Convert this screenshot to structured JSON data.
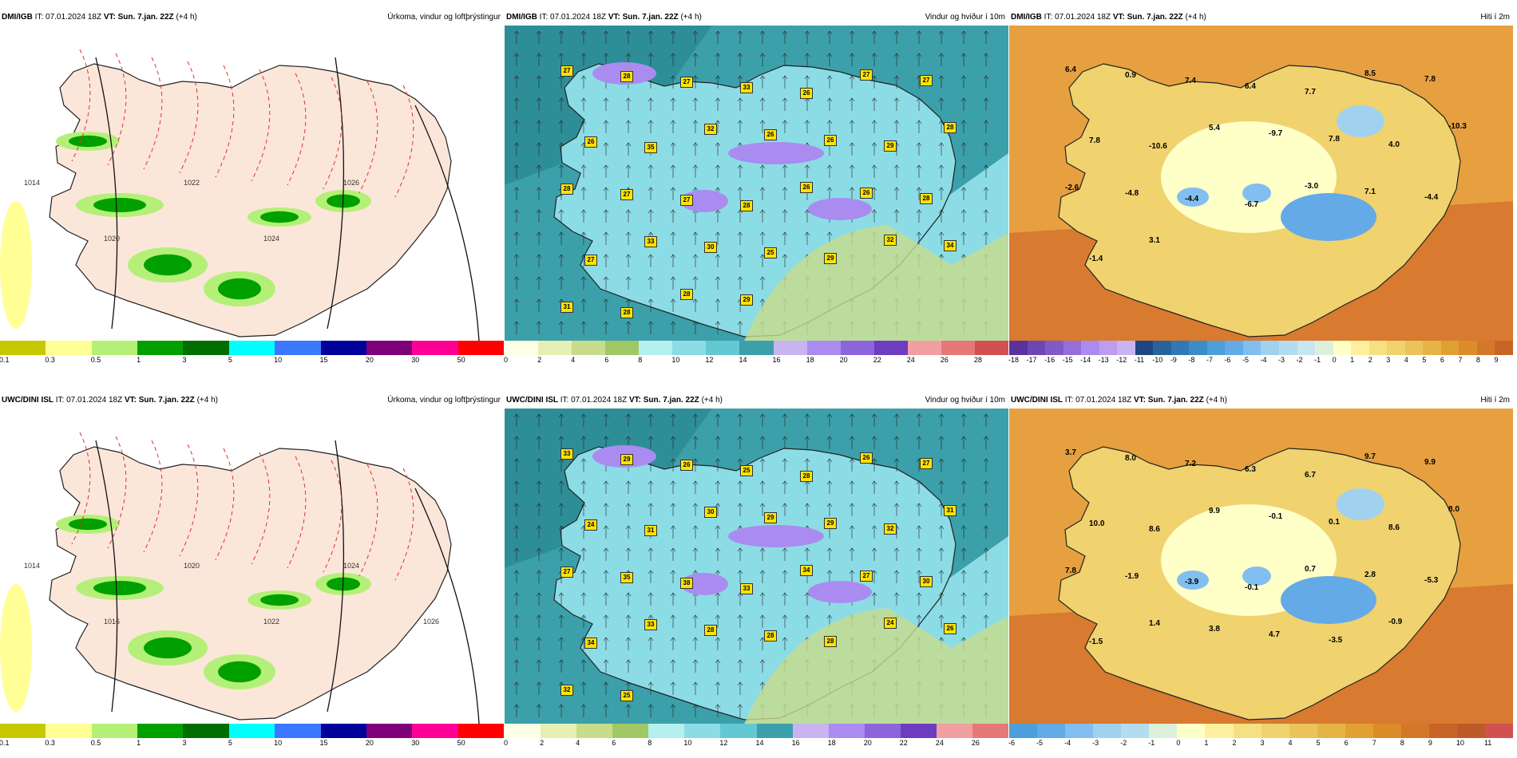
{
  "rows": [
    {
      "source": "DMI/IGB",
      "panels": [
        {
          "it": "IT: 07.01.2024 18Z",
          "vt": "VT: Sun. 7.jan. 22Z",
          "offset": "(+4 h)",
          "title": "Úrkoma, vindur og loftþrýstingur",
          "type": "precip",
          "ticks": [
            "0.1",
            "0.3",
            "0.5",
            "1",
            "3",
            "5",
            "10",
            "15",
            "20",
            "30",
            "50"
          ],
          "colors": [
            "#c8c800",
            "#ffff96",
            "#b4f078",
            "#00a000",
            "#006e00",
            "#00ffff",
            "#3c78ff",
            "#00009b",
            "#7d0078",
            "#ff0096",
            "#ff0000"
          ],
          "labels": [],
          "isobars": [
            "1014",
            "1020",
            "1022",
            "1024",
            "1026"
          ]
        },
        {
          "it": "IT: 07.01.2024 18Z",
          "vt": "VT: Sun. 7.jan. 22Z",
          "offset": "(+4 h)",
          "title": "Vindur og hviður í 10m",
          "type": "wind",
          "ticks": [
            "0",
            "2",
            "4",
            "6",
            "8",
            "10",
            "12",
            "14",
            "16",
            "18",
            "20",
            "22",
            "24",
            "26",
            "28"
          ],
          "colors": [
            "#ffffe6",
            "#e6f0b4",
            "#c8dc8c",
            "#a0c864",
            "#b4f0f0",
            "#8cdce6",
            "#64c8d2",
            "#3ca0aa",
            "#c8b4f0",
            "#aa8cf0",
            "#8c64dc",
            "#6e3cbe",
            "#f0a0a0",
            "#e67878",
            "#d25050"
          ],
          "labels": [
            "27",
            "28",
            "27",
            "33",
            "26",
            "27",
            "27",
            "26",
            "35",
            "32",
            "26",
            "26",
            "29",
            "28",
            "28",
            "27",
            "27",
            "28",
            "26",
            "26",
            "28",
            "27",
            "33",
            "30",
            "25",
            "29",
            "32",
            "34",
            "31",
            "28",
            "28",
            "29"
          ]
        },
        {
          "it": "IT: 07.01.2024 18Z",
          "vt": "VT: Sun. 7.jan. 22Z",
          "offset": "(+4 h)",
          "title": "Hiti í 2m",
          "type": "temp",
          "ticks": [
            "-18",
            "-17",
            "-16",
            "-15",
            "-14",
            "-13",
            "-12",
            "-11",
            "-10",
            "-9",
            "-8",
            "-7",
            "-6",
            "-5",
            "-4",
            "-3",
            "-2",
            "-1",
            "0",
            "1",
            "2",
            "3",
            "4",
            "5",
            "6",
            "7",
            "8",
            "9"
          ],
          "colors": [
            "#5a32a0",
            "#6e46b4",
            "#825ac8",
            "#966edc",
            "#aa8cf0",
            "#be9cf0",
            "#c8b4f0",
            "#1e4682",
            "#28649b",
            "#3278b4",
            "#3c8cc8",
            "#4ba0dc",
            "#64aae6",
            "#82bef0",
            "#a0d2f0",
            "#b4dcf0",
            "#c8e6f0",
            "#dcf0dc",
            "#ffffc8",
            "#fff0a0",
            "#f5e182",
            "#f0d26e",
            "#ebc35a",
            "#e6b446",
            "#e1a032",
            "#dc8c28",
            "#d27828",
            "#c86428"
          ],
          "labels": [
            "6.4",
            "0.9",
            "7.4",
            "6.4",
            "7.7",
            "8.5",
            "7.8",
            "7.8",
            "-10.6",
            "5.4",
            "-9.7",
            "7.8",
            "4.0",
            "-10.3",
            "-2.6",
            "-4.8",
            "-4.4",
            "-6.7",
            "-3.0",
            "7.1",
            "-4.4",
            "-1.4",
            "3.1"
          ]
        }
      ]
    },
    {
      "source": "UWC/DINI ISL",
      "panels": [
        {
          "it": "IT: 07.01.2024 18Z",
          "vt": "VT: Sun. 7.jan. 22Z",
          "offset": "(+4 h)",
          "title": "Úrkoma, vindur og loftþrýstingur",
          "type": "precip",
          "ticks": [
            "0.1",
            "0.3",
            "0.5",
            "1",
            "3",
            "5",
            "10",
            "15",
            "20",
            "30",
            "50"
          ],
          "colors": [
            "#c8c800",
            "#ffff96",
            "#b4f078",
            "#00a000",
            "#006e00",
            "#00ffff",
            "#3c78ff",
            "#00009b",
            "#7d0078",
            "#ff0096",
            "#ff0000"
          ],
          "labels": [],
          "isobars": [
            "1014",
            "1016",
            "1020",
            "1022",
            "1024",
            "1026"
          ]
        },
        {
          "it": "IT: 07.01.2024 18Z",
          "vt": "VT: Sun. 7.jan. 22Z",
          "offset": "(+4 h)",
          "title": "Vindur og hviður í 10m",
          "type": "wind",
          "ticks": [
            "0",
            "2",
            "4",
            "6",
            "8",
            "10",
            "12",
            "14",
            "16",
            "18",
            "20",
            "22",
            "24",
            "26"
          ],
          "colors": [
            "#ffffe6",
            "#e6f0b4",
            "#c8dc8c",
            "#a0c864",
            "#b4f0f0",
            "#8cdce6",
            "#64c8d2",
            "#3ca0aa",
            "#c8b4f0",
            "#aa8cf0",
            "#8c64dc",
            "#6e3cbe",
            "#f0a0a0",
            "#e67878"
          ],
          "labels": [
            "33",
            "29",
            "26",
            "25",
            "28",
            "26",
            "27",
            "24",
            "31",
            "30",
            "29",
            "29",
            "32",
            "31",
            "27",
            "35",
            "38",
            "33",
            "34",
            "27",
            "30",
            "34",
            "33",
            "28",
            "28",
            "28",
            "24",
            "26",
            "32",
            "25"
          ]
        },
        {
          "it": "IT: 07.01.2024 18Z",
          "vt": "VT: Sun. 7.jan. 22Z",
          "offset": "(+4 h)",
          "title": "Hiti í 2m",
          "type": "temp",
          "ticks": [
            "-6",
            "-5",
            "-4",
            "-3",
            "-2",
            "-1",
            "0",
            "1",
            "2",
            "3",
            "4",
            "5",
            "6",
            "7",
            "8",
            "9",
            "10",
            "11"
          ],
          "colors": [
            "#4ba0dc",
            "#64aae6",
            "#82bef0",
            "#a0d2f0",
            "#b4dcf0",
            "#dcf0dc",
            "#ffffc8",
            "#fff0a0",
            "#f5e182",
            "#f0d26e",
            "#ebc35a",
            "#e6b446",
            "#e1a032",
            "#dc8c28",
            "#d27828",
            "#c86428",
            "#be5a28",
            "#d25050"
          ],
          "labels": [
            "3.7",
            "8.0",
            "7.2",
            "6.3",
            "6.7",
            "9.7",
            "9.9",
            "10.0",
            "8.6",
            "9.9",
            "-0.1",
            "0.1",
            "8.6",
            "8.0",
            "7.8",
            "-1.9",
            "-3.9",
            "-0.1",
            "0.7",
            "2.8",
            "-5.3",
            "-1.5",
            "1.4",
            "3.8",
            "4.7",
            "-3.5",
            "-0.9"
          ]
        }
      ]
    }
  ]
}
